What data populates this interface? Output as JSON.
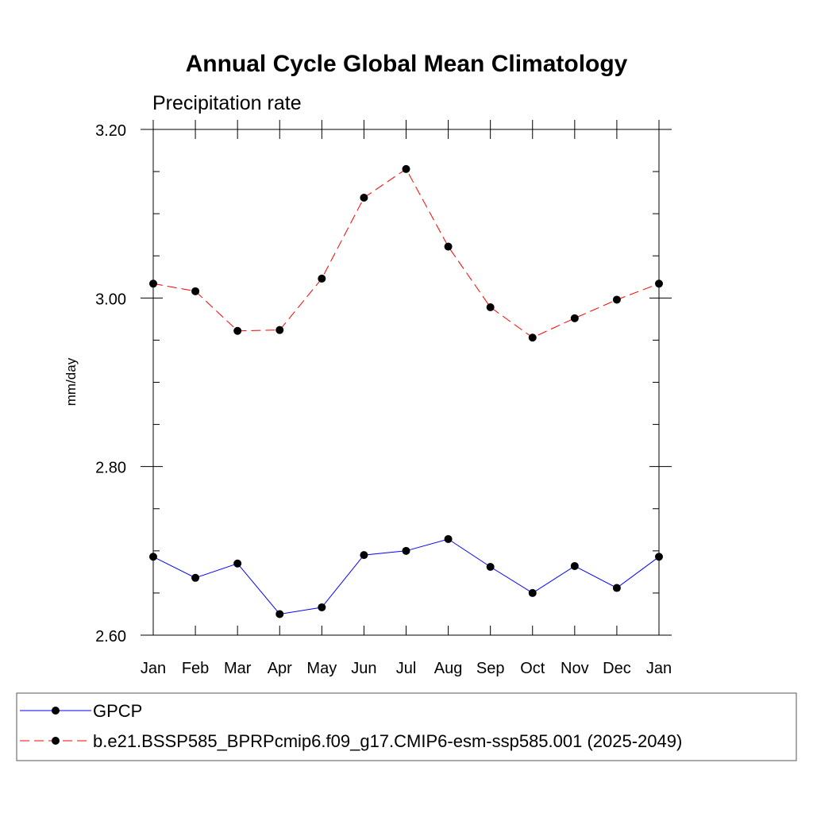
{
  "chart_data": {
    "type": "line",
    "title": "Annual Cycle Global Mean Climatology",
    "subtitle": "Precipitation rate",
    "xlabel": "",
    "ylabel": "mm/day",
    "categories": [
      "Jan",
      "Feb",
      "Mar",
      "Apr",
      "May",
      "Jun",
      "Jul",
      "Aug",
      "Sep",
      "Oct",
      "Nov",
      "Dec",
      "Jan"
    ],
    "ylim": [
      2.6,
      3.2
    ],
    "y_ticks": [
      "2.60",
      "2.80",
      "3.00",
      "3.20"
    ],
    "y_tick_values": [
      2.6,
      2.8,
      3.0,
      3.2
    ],
    "grid": false,
    "legend_position": "bottom",
    "series": [
      {
        "name": "GPCP",
        "color": "#0000ff",
        "line_style": "solid",
        "marker": "filled-circle",
        "values": [
          2.693,
          2.668,
          2.685,
          2.625,
          2.633,
          2.695,
          2.7,
          2.714,
          2.681,
          2.65,
          2.682,
          2.656,
          2.693
        ]
      },
      {
        "name": "b.e21.BSSP585_BPRPcmip6.f09_g17.CMIP6-esm-ssp585.001 (2025-2049)",
        "color": "#ff0000",
        "line_style": "dashed",
        "marker": "filled-circle",
        "values": [
          3.017,
          3.008,
          2.961,
          2.962,
          3.023,
          3.119,
          3.153,
          3.061,
          2.989,
          2.953,
          2.976,
          2.998,
          3.017
        ]
      }
    ]
  }
}
